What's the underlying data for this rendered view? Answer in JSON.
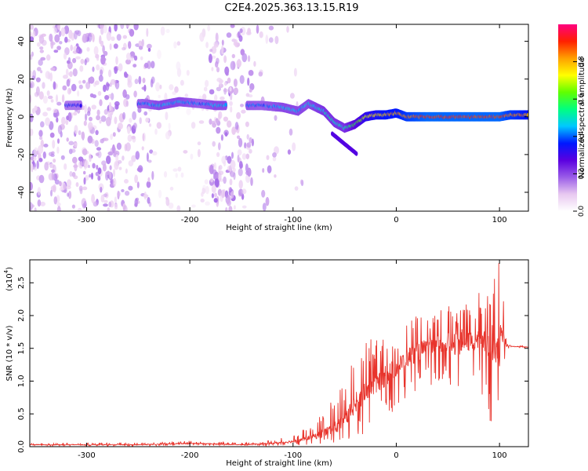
{
  "title": "C2E4.2025.363.13.15.R19",
  "chart_data": [
    {
      "type": "heatmap",
      "panel": "spectrogram",
      "xlabel": "Height of straight line (km)",
      "ylabel": "Frequency (Hz)",
      "xlim": [
        -355,
        128
      ],
      "ylim": [
        -50,
        49
      ],
      "xticks": [
        -300,
        -200,
        -100,
        0,
        100
      ],
      "xtick_labels": [
        "-300",
        "-200",
        "-100",
        "0",
        "100"
      ],
      "yticks": [
        -40,
        -20,
        0,
        20,
        40
      ],
      "ytick_labels": [
        "-40",
        "-20",
        "0",
        "20",
        "40"
      ],
      "colorbar": {
        "label": "Normalized spectral amplitude",
        "range": [
          0,
          1
        ],
        "ticks": [
          0.0,
          0.2,
          0.4,
          0.6,
          0.8
        ],
        "tick_labels": [
          "0.0",
          "0.2",
          "0.4",
          "0.6",
          "0.8"
        ],
        "colors": [
          "#ffffff",
          "#e8c8f0",
          "#9a5ce8",
          "#5a00e0",
          "#0018ff",
          "#00c8ff",
          "#00ff80",
          "#60ff00",
          "#ffff00",
          "#ffa000",
          "#ff2000",
          "#ff0080"
        ]
      },
      "signal_track": {
        "description": "frequency of strongest tone vs height",
        "x": [
          -320,
          -245,
          -230,
          -210,
          -190,
          -175,
          -130,
          -110,
          -95,
          -85,
          -70,
          -60,
          -50,
          -40,
          -30,
          -20,
          -10,
          0,
          10,
          30,
          60,
          90,
          100,
          110,
          128
        ],
        "y": [
          6,
          7,
          6,
          8,
          7,
          6,
          6,
          5,
          3,
          7,
          3,
          -3,
          -6,
          -4,
          0,
          1,
          1,
          2,
          0,
          0,
          0,
          0,
          0,
          1,
          1
        ],
        "amplitude": [
          0.35,
          0.4,
          0.45,
          0.45,
          0.4,
          0.45,
          0.4,
          0.45,
          0.45,
          0.45,
          0.5,
          0.5,
          0.5,
          0.6,
          0.7,
          0.75,
          0.8,
          0.8,
          0.85,
          0.9,
          0.9,
          0.9,
          0.9,
          0.85,
          0.8
        ]
      }
    },
    {
      "type": "line",
      "panel": "snr",
      "xlabel": "Height of straight line (km)",
      "ylabel": "SNR (10 * v/v)",
      "y_multiplier_label": "(x10",
      "y_multiplier_exp": "4",
      "y_multiplier_close": ")",
      "line_color": "#e8342c",
      "xlim": [
        -355,
        128
      ],
      "ylim": [
        0,
        2.85
      ],
      "xticks": [
        -300,
        -200,
        -100,
        0,
        100
      ],
      "xtick_labels": [
        "-300",
        "-200",
        "-100",
        "0",
        "100"
      ],
      "yticks": [
        0.0,
        0.5,
        1.0,
        1.5,
        2.0,
        2.5
      ],
      "ytick_labels": [
        "0.0",
        "0.5",
        "1.0",
        "1.5",
        "2.0",
        "2.5"
      ],
      "envelope": {
        "x": [
          -355,
          -250,
          -200,
          -150,
          -120,
          -100,
          -80,
          -60,
          -50,
          -40,
          -30,
          -20,
          -10,
          0,
          10,
          20,
          30,
          40,
          50,
          60,
          70,
          80,
          90,
          100,
          105,
          107,
          110,
          128
        ],
        "mean": [
          0.03,
          0.03,
          0.05,
          0.03,
          0.05,
          0.08,
          0.15,
          0.28,
          0.4,
          0.65,
          0.85,
          0.95,
          1.1,
          1.2,
          1.35,
          1.45,
          1.5,
          1.55,
          1.58,
          1.6,
          1.6,
          1.6,
          1.6,
          1.55,
          1.55,
          1.55,
          1.53,
          1.52
        ],
        "max": [
          0.05,
          0.06,
          0.09,
          0.06,
          0.1,
          0.18,
          0.35,
          0.8,
          1.0,
          1.4,
          1.7,
          1.6,
          1.85,
          1.6,
          1.9,
          2.0,
          2.0,
          2.1,
          2.2,
          2.1,
          2.2,
          2.35,
          2.3,
          2.85,
          2.85,
          1.56,
          1.55,
          1.53
        ],
        "min": [
          0.01,
          0.01,
          0.02,
          0.01,
          0.01,
          0.02,
          0.02,
          0.05,
          0.1,
          0.15,
          0.2,
          0.35,
          0.4,
          0.55,
          0.7,
          0.8,
          0.9,
          1.0,
          1.0,
          0.4,
          1.0,
          1.0,
          0.3,
          0.2,
          0.2,
          1.5,
          1.5,
          1.5
        ]
      }
    }
  ]
}
